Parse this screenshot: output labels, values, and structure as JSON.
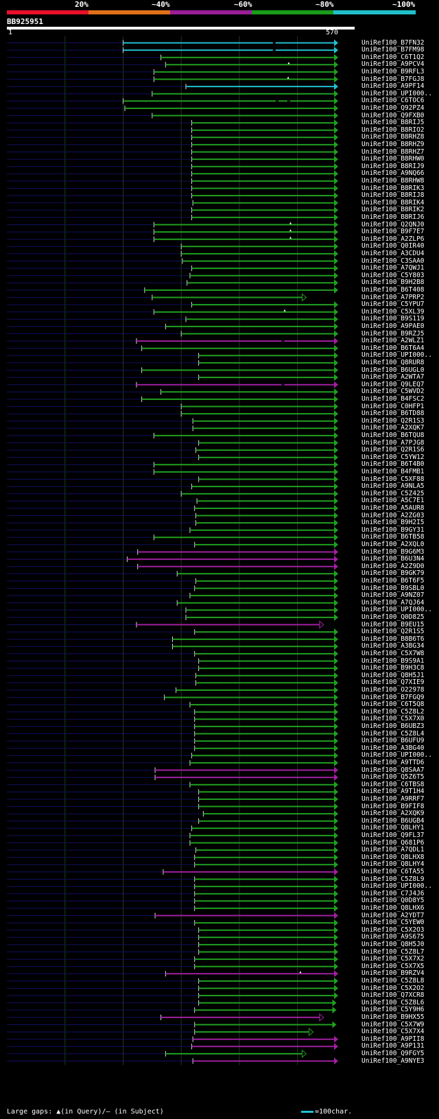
{
  "legend": {
    "labels": [
      "20%",
      "~40%",
      "~60%",
      "~80%",
      "~100%"
    ],
    "colors": [
      "#e8102a",
      "#e07018",
      "#9a1e96",
      "#1a9c1a",
      "#20c0c8"
    ]
  },
  "query": {
    "name": "BB925951",
    "start": "1",
    "end": "570"
  },
  "colors": {
    "cyan": "#20c0d0",
    "green": "#20a020",
    "magenta": "#a020a0",
    "axis": "#101060",
    "grid": "#1c3a1c"
  },
  "chart_data": {
    "type": "alignment",
    "query_length": 570,
    "hits": [
      {
        "id": "UniRef100_B7FN32",
        "start": 200,
        "end": 570,
        "color": "cyan",
        "gaps": [
          460
        ]
      },
      {
        "id": "UniRef100_B7FM98",
        "start": 200,
        "end": 570,
        "color": "cyan",
        "gaps": [
          460
        ]
      },
      {
        "id": "UniRef100_C6T1Q2",
        "start": 265,
        "end": 570,
        "color": "green"
      },
      {
        "id": "UniRef100_A9PCV4",
        "start": 273,
        "end": 570,
        "color": "green",
        "marks": [
          485
        ]
      },
      {
        "id": "UniRef100_B9RFL3",
        "start": 253,
        "end": 570,
        "color": "green"
      },
      {
        "id": "UniRef100_B7FGJ8",
        "start": 253,
        "end": 570,
        "color": "green",
        "marks": [
          484
        ]
      },
      {
        "id": "UniRef100_A9PF14",
        "start": 308,
        "end": 570,
        "color": "cyan"
      },
      {
        "id": "UniRef100_UPI000..",
        "start": 250,
        "end": 570,
        "color": "green"
      },
      {
        "id": "UniRef100_C6TOC6",
        "start": 200,
        "end": 570,
        "color": "green",
        "gaps": [
          465,
          485
        ]
      },
      {
        "id": "UniRef100_Q92PZ4",
        "start": 203,
        "end": 570,
        "color": "green"
      },
      {
        "id": "UniRef100_Q9FXB0",
        "start": 250,
        "end": 570,
        "color": "green"
      },
      {
        "id": "UniRef100_B8RIJ5",
        "start": 318,
        "end": 570,
        "color": "green"
      },
      {
        "id": "UniRef100_B8RIO2",
        "start": 318,
        "end": 570,
        "color": "green"
      },
      {
        "id": "UniRef100_B8RHZ8",
        "start": 318,
        "end": 570,
        "color": "green"
      },
      {
        "id": "UniRef100_B8RHZ9",
        "start": 318,
        "end": 570,
        "color": "green"
      },
      {
        "id": "UniRef100_B8RHZ7",
        "start": 318,
        "end": 570,
        "color": "green"
      },
      {
        "id": "UniRef100_B8RHW0",
        "start": 318,
        "end": 570,
        "color": "green"
      },
      {
        "id": "UniRef100_B8RIJ9",
        "start": 318,
        "end": 570,
        "color": "green"
      },
      {
        "id": "UniRef100_A9NQ66",
        "start": 318,
        "end": 570,
        "color": "green"
      },
      {
        "id": "UniRef100_B8RHW8",
        "start": 318,
        "end": 570,
        "color": "green"
      },
      {
        "id": "UniRef100_B8RIK3",
        "start": 318,
        "end": 570,
        "color": "green"
      },
      {
        "id": "UniRef100_B8RIJ8",
        "start": 318,
        "end": 570,
        "color": "green"
      },
      {
        "id": "UniRef100_B8RIK4",
        "start": 320,
        "end": 570,
        "color": "green"
      },
      {
        "id": "UniRef100_B8RIK2",
        "start": 318,
        "end": 570,
        "color": "green"
      },
      {
        "id": "UniRef100_B8RIJ6",
        "start": 318,
        "end": 570,
        "color": "green"
      },
      {
        "id": "UniRef100_Q2QNJ0",
        "start": 253,
        "end": 570,
        "color": "green",
        "marks": [
          488
        ]
      },
      {
        "id": "UniRef100_B9F7E7",
        "start": 253,
        "end": 570,
        "color": "green",
        "marks": [
          488
        ]
      },
      {
        "id": "UniRef100_A2ZLP6",
        "start": 253,
        "end": 570,
        "color": "green",
        "marks": [
          488
        ]
      },
      {
        "id": "UniRef100_Q0IR40",
        "start": 300,
        "end": 570,
        "color": "green"
      },
      {
        "id": "UniRef100_A3CDU4",
        "start": 300,
        "end": 570,
        "color": "green"
      },
      {
        "id": "UniRef100_C3SAA0",
        "start": 302,
        "end": 570,
        "color": "green"
      },
      {
        "id": "UniRef100_A7QWJ1",
        "start": 318,
        "end": 570,
        "color": "green"
      },
      {
        "id": "UniRef100_C5Y803",
        "start": 315,
        "end": 570,
        "color": "green"
      },
      {
        "id": "UniRef100_B9H2B8",
        "start": 310,
        "end": 570,
        "color": "green"
      },
      {
        "id": "UniRef100_B6T408",
        "start": 237,
        "end": 570,
        "color": "green"
      },
      {
        "id": "UniRef100_A7PRP2",
        "start": 250,
        "end": 515,
        "color": "green",
        "open": true
      },
      {
        "id": "UniRef100_C5YPU7",
        "start": 318,
        "end": 570,
        "color": "green"
      },
      {
        "id": "UniRef100_C5XL39",
        "start": 253,
        "end": 570,
        "color": "green",
        "marks": [
          478
        ]
      },
      {
        "id": "UniRef100_B9S119",
        "start": 308,
        "end": 570,
        "color": "green"
      },
      {
        "id": "UniRef100_A9PAE0",
        "start": 273,
        "end": 570,
        "color": "green"
      },
      {
        "id": "UniRef100_B9RZJ5",
        "start": 300,
        "end": 570,
        "color": "green"
      },
      {
        "id": "UniRef100_A2WLZ1",
        "start": 223,
        "end": 570,
        "color": "magenta",
        "gaps": [
          475
        ]
      },
      {
        "id": "UniRef100_B6T6A4",
        "start": 232,
        "end": 570,
        "color": "green"
      },
      {
        "id": "UniRef100_UPI000..",
        "start": 330,
        "end": 570,
        "color": "green"
      },
      {
        "id": "UniRef100_Q8RUR8",
        "start": 330,
        "end": 570,
        "color": "green"
      },
      {
        "id": "UniRef100_B6UGL0",
        "start": 232,
        "end": 570,
        "color": "green"
      },
      {
        "id": "UniRef100_A2WTA7",
        "start": 330,
        "end": 570,
        "color": "green"
      },
      {
        "id": "UniRef100_Q9LEQ7",
        "start": 223,
        "end": 570,
        "color": "magenta",
        "gaps": [
          475
        ]
      },
      {
        "id": "UniRef100_C5WVD2",
        "start": 265,
        "end": 570,
        "color": "green"
      },
      {
        "id": "UniRef100_B4FSC2",
        "start": 232,
        "end": 570,
        "color": "green"
      },
      {
        "id": "UniRef100_C0HFP1",
        "start": 300,
        "end": 570,
        "color": "green"
      },
      {
        "id": "UniRef100_B6TD88",
        "start": 300,
        "end": 570,
        "color": "green"
      },
      {
        "id": "UniRef100_Q2R1S3",
        "start": 320,
        "end": 570,
        "color": "green"
      },
      {
        "id": "UniRef100_A2XQK7",
        "start": 320,
        "end": 570,
        "color": "green"
      },
      {
        "id": "UniRef100_B6TQU8",
        "start": 253,
        "end": 570,
        "color": "green"
      },
      {
        "id": "UniRef100_A7PJG8",
        "start": 330,
        "end": 570,
        "color": "green"
      },
      {
        "id": "UniRef100_Q2R1S6",
        "start": 325,
        "end": 570,
        "color": "green"
      },
      {
        "id": "UniRef100_C5YW12",
        "start": 330,
        "end": 570,
        "color": "green"
      },
      {
        "id": "UniRef100_B6T4B0",
        "start": 253,
        "end": 570,
        "color": "green"
      },
      {
        "id": "UniRef100_B4FMB1",
        "start": 253,
        "end": 570,
        "color": "green"
      },
      {
        "id": "UniRef100_C5XF88",
        "start": 330,
        "end": 570,
        "color": "green"
      },
      {
        "id": "UniRef100_A9NLA5",
        "start": 318,
        "end": 570,
        "color": "green"
      },
      {
        "id": "UniRef100_C5Z425",
        "start": 300,
        "end": 570,
        "color": "green"
      },
      {
        "id": "UniRef100_A5C7E1",
        "start": 327,
        "end": 570,
        "color": "green"
      },
      {
        "id": "UniRef100_A5AUR8",
        "start": 323,
        "end": 570,
        "color": "green"
      },
      {
        "id": "UniRef100_A2ZG03",
        "start": 325,
        "end": 570,
        "color": "green"
      },
      {
        "id": "UniRef100_B9H2I5",
        "start": 325,
        "end": 570,
        "color": "green"
      },
      {
        "id": "UniRef100_B9GY31",
        "start": 315,
        "end": 570,
        "color": "green"
      },
      {
        "id": "UniRef100_B6TB58",
        "start": 253,
        "end": 570,
        "color": "green"
      },
      {
        "id": "UniRef100_A2XQL0",
        "start": 323,
        "end": 570,
        "color": "green"
      },
      {
        "id": "UniRef100_B9G6M3",
        "start": 225,
        "end": 570,
        "color": "magenta"
      },
      {
        "id": "UniRef100_B6U3N4",
        "start": 207,
        "end": 570,
        "color": "magenta"
      },
      {
        "id": "UniRef100_A2Z9D0",
        "start": 225,
        "end": 570,
        "color": "magenta"
      },
      {
        "id": "UniRef100_B9GK79",
        "start": 293,
        "end": 570,
        "color": "green"
      },
      {
        "id": "UniRef100_B6T6F5",
        "start": 325,
        "end": 570,
        "color": "green"
      },
      {
        "id": "UniRef100_B9SBL0",
        "start": 323,
        "end": 570,
        "color": "green"
      },
      {
        "id": "UniRef100_A9NZ07",
        "start": 315,
        "end": 570,
        "color": "green"
      },
      {
        "id": "UniRef100_A7QJ64",
        "start": 293,
        "end": 570,
        "color": "green"
      },
      {
        "id": "UniRef100_UPI000..",
        "start": 308,
        "end": 570,
        "color": "green"
      },
      {
        "id": "UniRef100_Q0D825",
        "start": 308,
        "end": 570,
        "color": "green"
      },
      {
        "id": "UniRef100_B9EU15",
        "start": 223,
        "end": 545,
        "color": "magenta",
        "open": true
      },
      {
        "id": "UniRef100_Q2R1S5",
        "start": 323,
        "end": 570,
        "color": "green"
      },
      {
        "id": "UniRef100_B8B6T6",
        "start": 285,
        "end": 570,
        "color": "green"
      },
      {
        "id": "UniRef100_A3BG34",
        "start": 285,
        "end": 570,
        "color": "green"
      },
      {
        "id": "UniRef100_C5X7W8",
        "start": 323,
        "end": 570,
        "color": "green"
      },
      {
        "id": "UniRef100_B9S9A1",
        "start": 330,
        "end": 570,
        "color": "green"
      },
      {
        "id": "UniRef100_B9H3C8",
        "start": 330,
        "end": 570,
        "color": "green"
      },
      {
        "id": "UniRef100_Q8H5J1",
        "start": 325,
        "end": 570,
        "color": "green"
      },
      {
        "id": "UniRef100_Q7XIE9",
        "start": 325,
        "end": 570,
        "color": "green"
      },
      {
        "id": "UniRef100_O22978",
        "start": 291,
        "end": 570,
        "color": "green"
      },
      {
        "id": "UniRef100_B7FGQ9",
        "start": 271,
        "end": 570,
        "color": "green"
      },
      {
        "id": "UniRef100_C6T5Q8",
        "start": 315,
        "end": 570,
        "color": "green"
      },
      {
        "id": "UniRef100_C5Z8L2",
        "start": 323,
        "end": 570,
        "color": "green"
      },
      {
        "id": "UniRef100_C5X7X0",
        "start": 323,
        "end": 570,
        "color": "green"
      },
      {
        "id": "UniRef100_B6UBZ3",
        "start": 323,
        "end": 570,
        "color": "green"
      },
      {
        "id": "UniRef100_C5Z8L4",
        "start": 323,
        "end": 570,
        "color": "green"
      },
      {
        "id": "UniRef100_B6UFU9",
        "start": 323,
        "end": 570,
        "color": "green"
      },
      {
        "id": "UniRef100_A3BG40",
        "start": 323,
        "end": 570,
        "color": "green"
      },
      {
        "id": "UniRef100_UPI000..",
        "start": 318,
        "end": 570,
        "color": "green"
      },
      {
        "id": "UniRef100_A9TTD6",
        "start": 315,
        "end": 570,
        "color": "green"
      },
      {
        "id": "UniRef100_Q8SAA7",
        "start": 255,
        "end": 570,
        "color": "magenta"
      },
      {
        "id": "UniRef100_Q5Z6T5",
        "start": 255,
        "end": 570,
        "color": "magenta"
      },
      {
        "id": "UniRef100_C6TBS8",
        "start": 315,
        "end": 570,
        "color": "green"
      },
      {
        "id": "UniRef100_A9T1H4",
        "start": 330,
        "end": 570,
        "color": "green"
      },
      {
        "id": "UniRef100_A9RRF7",
        "start": 330,
        "end": 570,
        "color": "green"
      },
      {
        "id": "UniRef100_B9FIF8",
        "start": 330,
        "end": 570,
        "color": "green"
      },
      {
        "id": "UniRef100_A2XQK9",
        "start": 338,
        "end": 570,
        "color": "green"
      },
      {
        "id": "UniRef100_B6UGB4",
        "start": 330,
        "end": 570,
        "color": "green"
      },
      {
        "id": "UniRef100_Q8LHY1",
        "start": 318,
        "end": 570,
        "color": "green"
      },
      {
        "id": "UniRef100_Q9FL37",
        "start": 315,
        "end": 570,
        "color": "green"
      },
      {
        "id": "UniRef100_Q681P6",
        "start": 315,
        "end": 570,
        "color": "green"
      },
      {
        "id": "UniRef100_A7QDL1",
        "start": 325,
        "end": 570,
        "color": "green"
      },
      {
        "id": "UniRef100_Q8LHX8",
        "start": 323,
        "end": 570,
        "color": "green"
      },
      {
        "id": "UniRef100_Q8LHY4",
        "start": 323,
        "end": 570,
        "color": "green"
      },
      {
        "id": "UniRef100_C6TA55",
        "start": 269,
        "end": 570,
        "color": "magenta"
      },
      {
        "id": "UniRef100_C5Z8L9",
        "start": 323,
        "end": 570,
        "color": "green"
      },
      {
        "id": "UniRef100_UPI000..",
        "start": 323,
        "end": 570,
        "color": "green"
      },
      {
        "id": "UniRef100_C7J4J6",
        "start": 323,
        "end": 570,
        "color": "green"
      },
      {
        "id": "UniRef100_Q0D8Y5",
        "start": 323,
        "end": 570,
        "color": "green"
      },
      {
        "id": "UniRef100_Q8LHX6",
        "start": 323,
        "end": 570,
        "color": "green"
      },
      {
        "id": "UniRef100_A2YDT7",
        "start": 255,
        "end": 570,
        "color": "magenta"
      },
      {
        "id": "UniRef100_C5YEW0",
        "start": 323,
        "end": 570,
        "color": "green"
      },
      {
        "id": "UniRef100_C5X2O3",
        "start": 330,
        "end": 570,
        "color": "green"
      },
      {
        "id": "UniRef100_A9S675",
        "start": 330,
        "end": 570,
        "color": "green"
      },
      {
        "id": "UniRef100_Q8H5J0",
        "start": 330,
        "end": 570,
        "color": "green"
      },
      {
        "id": "UniRef100_C5Z8L7",
        "start": 330,
        "end": 570,
        "color": "green"
      },
      {
        "id": "UniRef100_C5X7X2",
        "start": 323,
        "end": 570,
        "color": "green"
      },
      {
        "id": "UniRef100_C5X7X5",
        "start": 323,
        "end": 570,
        "color": "green"
      },
      {
        "id": "UniRef100_B9RZV4",
        "start": 273,
        "end": 570,
        "color": "magenta",
        "marks": [
          505
        ]
      },
      {
        "id": "UniRef100_C5Z8L8",
        "start": 330,
        "end": 570,
        "color": "green"
      },
      {
        "id": "UniRef100_C5X2O2",
        "start": 330,
        "end": 570,
        "color": "green"
      },
      {
        "id": "UniRef100_Q7XCR8",
        "start": 330,
        "end": 570,
        "color": "green"
      },
      {
        "id": "UniRef100_C5Z8L6",
        "start": 330,
        "end": 567,
        "color": "green"
      },
      {
        "id": "UniRef100_C5Y9H6",
        "start": 323,
        "end": 567,
        "color": "green"
      },
      {
        "id": "UniRef100_B9HX55",
        "start": 265,
        "end": 545,
        "color": "magenta",
        "open": true
      },
      {
        "id": "UniRef100_C5X7W9",
        "start": 323,
        "end": 567,
        "color": "green"
      },
      {
        "id": "UniRef100_C5X7X4",
        "start": 323,
        "end": 527,
        "color": "green",
        "open": true
      },
      {
        "id": "UniRef100_A9PII8",
        "start": 320,
        "end": 570,
        "color": "magenta"
      },
      {
        "id": "UniRef100_A9P131",
        "start": 318,
        "end": 570,
        "color": "magenta"
      },
      {
        "id": "UniRef100_Q9FGY5",
        "start": 273,
        "end": 515,
        "color": "green",
        "open": true
      },
      {
        "id": "UniRef100_A9NYE3",
        "start": 320,
        "end": 570,
        "color": "magenta"
      }
    ]
  },
  "footer": {
    "text": "Large gaps: ▲(in Query)/– (in Subject)",
    "scale_label": "=100char."
  }
}
